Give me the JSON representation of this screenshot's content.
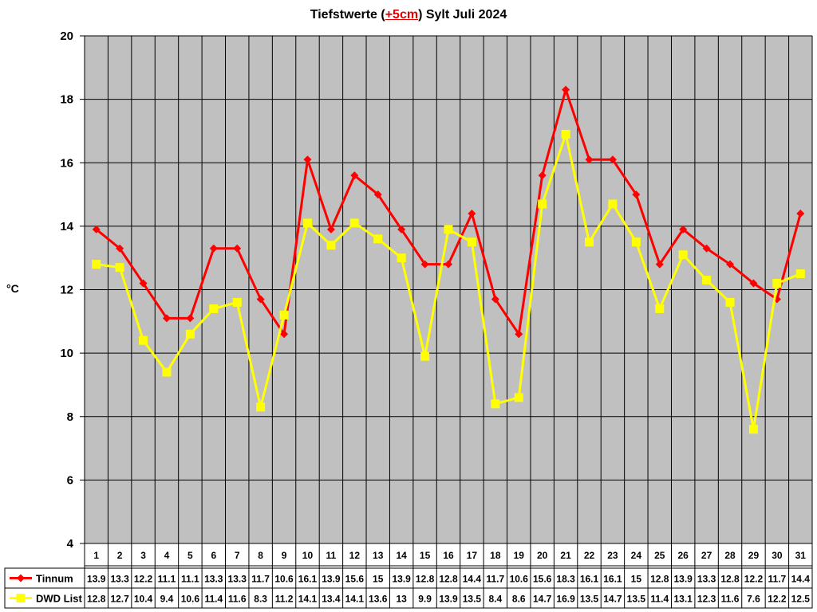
{
  "title": {
    "prefix": "Tiefstwerte (",
    "highlight": "+5cm",
    "suffix": ") Sylt Juli 2024"
  },
  "ylabel": "°C",
  "colors": {
    "plot_bg": "#c0c0c0",
    "tinnum": "#ff0000",
    "dwd": "#ffff00",
    "grid": "#000000"
  },
  "chart_data": {
    "type": "line",
    "title": "Tiefstwerte (+5cm) Sylt Juli 2024",
    "xlabel": "",
    "ylabel": "°C",
    "ylim": [
      4,
      20
    ],
    "yticks": [
      4,
      6,
      8,
      10,
      12,
      14,
      16,
      18,
      20
    ],
    "grid": true,
    "legend_position": "data-table-left",
    "categories": [
      "1",
      "2",
      "3",
      "4",
      "5",
      "6",
      "7",
      "8",
      "9",
      "10",
      "11",
      "12",
      "13",
      "14",
      "15",
      "16",
      "17",
      "18",
      "19",
      "20",
      "21",
      "22",
      "23",
      "24",
      "25",
      "26",
      "27",
      "28",
      "29",
      "30",
      "31"
    ],
    "series": [
      {
        "name": "Tinnum",
        "color": "#ff0000",
        "marker": "diamond",
        "values": [
          13.9,
          13.3,
          12.2,
          11.1,
          11.1,
          13.3,
          13.3,
          11.7,
          10.6,
          16.1,
          13.9,
          15.6,
          15,
          13.9,
          12.8,
          12.8,
          14.4,
          11.7,
          10.6,
          15.6,
          18.3,
          16.1,
          16.1,
          15,
          12.8,
          13.9,
          13.3,
          12.8,
          12.2,
          11.7,
          14.4
        ]
      },
      {
        "name": "DWD List",
        "color": "#ffff00",
        "marker": "square",
        "values": [
          12.8,
          12.7,
          10.4,
          9.4,
          10.6,
          11.4,
          11.6,
          8.3,
          11.2,
          14.1,
          13.4,
          14.1,
          13.6,
          13,
          9.9,
          13.9,
          13.5,
          8.4,
          8.6,
          14.7,
          16.9,
          13.5,
          14.7,
          13.5,
          11.4,
          13.1,
          12.3,
          11.6,
          7.6,
          12.2,
          12.5
        ]
      }
    ]
  }
}
